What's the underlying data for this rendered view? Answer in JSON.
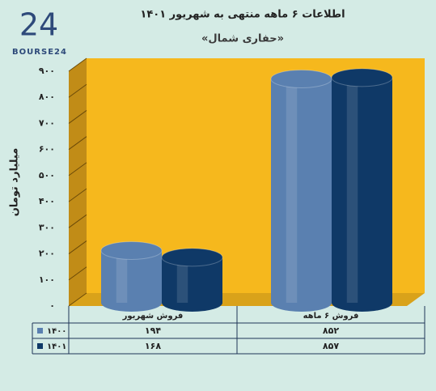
{
  "logo_text": "BOURSE24",
  "chart_data": {
    "type": "bar",
    "title": "اطلاعات ۶ ماهه منتهی به شهریور ۱۴۰۱",
    "subtitle": "«حفاری شمال»",
    "y_label": "میلیارد تومان",
    "categories": [
      "فروش شهریور",
      "فروش ۶ ماهه"
    ],
    "series": [
      {
        "name": "۱۴۰۰",
        "color": "#5a80b0",
        "values": [
          194,
          852
        ],
        "value_labels": [
          "۱۹۴",
          "۸۵۲"
        ]
      },
      {
        "name": "۱۴۰۱",
        "color": "#0f3967",
        "values": [
          168,
          857
        ],
        "value_labels": [
          "۱۶۸",
          "۸۵۷"
        ]
      }
    ],
    "ylim": [
      0,
      900
    ],
    "yticks": [
      {
        "value": 0,
        "label": "۰"
      },
      {
        "value": 100,
        "label": "۱۰۰"
      },
      {
        "value": 200,
        "label": "۲۰۰"
      },
      {
        "value": 300,
        "label": "۳۰۰"
      },
      {
        "value": 400,
        "label": "۴۰۰"
      },
      {
        "value": 500,
        "label": "۵۰۰"
      },
      {
        "value": 600,
        "label": "۶۰۰"
      },
      {
        "value": 700,
        "label": "۷۰۰"
      },
      {
        "value": 800,
        "label": "۸۰۰"
      },
      {
        "value": 900,
        "label": "۹۰۰"
      }
    ],
    "grid": true
  }
}
